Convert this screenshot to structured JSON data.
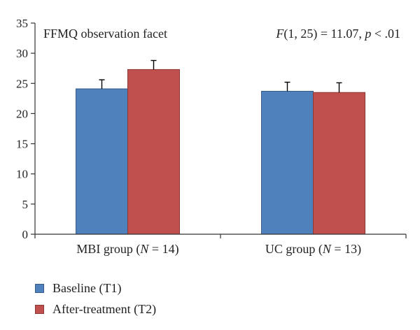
{
  "chart_data": {
    "type": "bar",
    "categories": [
      "MBI group (N = 14)",
      "UC group (N = 13)"
    ],
    "category_parts": [
      {
        "pre": "MBI group (",
        "italic": "N",
        "post": " = 14)"
      },
      {
        "pre": "UC group (",
        "italic": "N",
        "post": " = 13)"
      }
    ],
    "series": [
      {
        "name": "Baseline (T1)",
        "values": [
          24.1,
          23.7
        ],
        "errors": [
          1.5,
          1.5
        ],
        "color": "#4f81bd",
        "stroke": "#385d8a"
      },
      {
        "name": "After-treatment (T2)",
        "values": [
          27.3,
          23.5
        ],
        "errors": [
          1.5,
          1.6
        ],
        "color": "#c0504d",
        "stroke": "#8c3836"
      }
    ],
    "ylim": [
      0,
      35
    ],
    "yticks": [
      0,
      5,
      10,
      15,
      20,
      25,
      30,
      35
    ],
    "title": "FFMQ observation facet",
    "annotation": {
      "italic1": "F",
      "part1": "(1, 25) = 11.07, ",
      "italic2": "p",
      "part2": " < .01"
    },
    "legend_position": "bottom-left",
    "grid": false
  }
}
